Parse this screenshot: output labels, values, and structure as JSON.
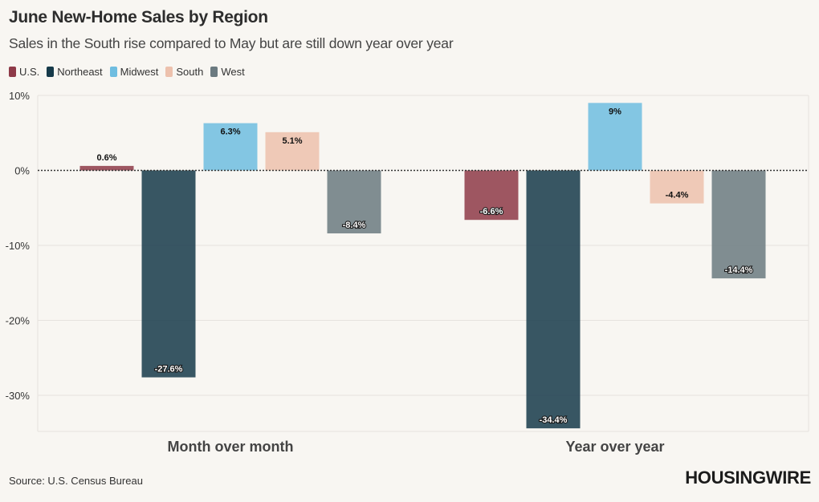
{
  "header": {
    "title": "June New-Home Sales by Region",
    "subtitle": "Sales in the South rise compared to May but are still down year over year"
  },
  "legend": {
    "items": [
      {
        "label": "U.S.",
        "color": "#8e3a48"
      },
      {
        "label": "Northeast",
        "color": "#163a4a"
      },
      {
        "label": "Midwest",
        "color": "#6fbde0"
      },
      {
        "label": "South",
        "color": "#edc1ad"
      },
      {
        "label": "West",
        "color": "#6b7a80"
      }
    ]
  },
  "chart_data": {
    "type": "bar",
    "title": "June New-Home Sales by Region",
    "categories": [
      "Month over month",
      "Year over year"
    ],
    "series": [
      {
        "name": "U.S.",
        "color": "#8e3a48",
        "values": [
          0.6,
          -6.6
        ],
        "labels": [
          "0.6%",
          "-6.6%"
        ]
      },
      {
        "name": "Northeast",
        "color": "#163a4a",
        "values": [
          -27.6,
          -34.4
        ],
        "labels": [
          "-27.6%",
          "-34.4%"
        ]
      },
      {
        "name": "Midwest",
        "color": "#6fbde0",
        "values": [
          6.3,
          9
        ],
        "labels": [
          "6.3%",
          "9%"
        ]
      },
      {
        "name": "South",
        "color": "#edc1ad",
        "values": [
          5.1,
          -4.4
        ],
        "labels": [
          "5.1%",
          "-4.4%"
        ]
      },
      {
        "name": "West",
        "color": "#6b7a80",
        "values": [
          -8.4,
          -14.4
        ],
        "labels": [
          "-8.4%",
          "-14.4%"
        ]
      }
    ],
    "yticks": [
      10,
      0,
      -10,
      -20,
      -30
    ],
    "ytick_labels": [
      "10%",
      "0%",
      "-10%",
      "-20%",
      "-30%"
    ],
    "ylim": [
      -35,
      10
    ],
    "xlabel": "",
    "ylabel": "",
    "grid": true,
    "legend_position": "top-left"
  },
  "footer": {
    "source": "Source: U.S. Census Bureau",
    "brand": "HOUSINGWIRE"
  }
}
